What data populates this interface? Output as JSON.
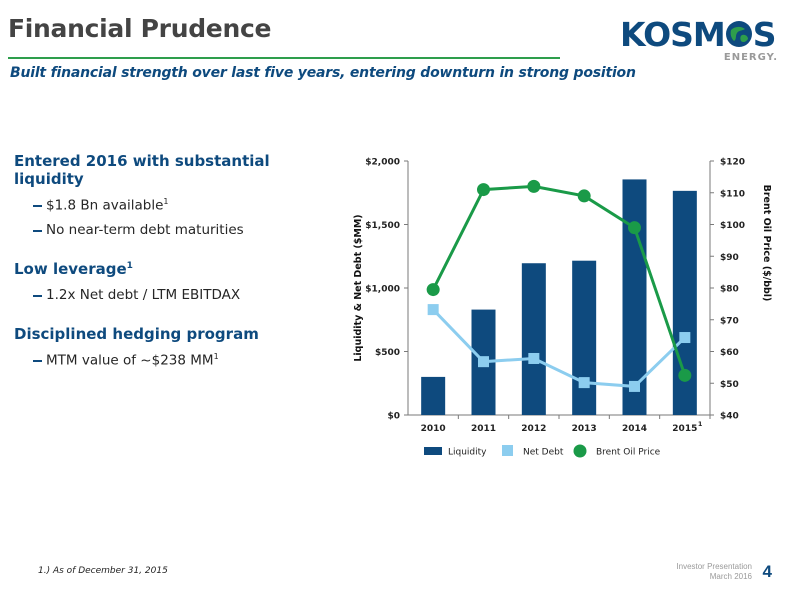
{
  "header": {
    "title": "Financial Prudence",
    "subtitle": "Built financial strength over last five years, entering downturn in strong position"
  },
  "logo": {
    "part1": "KOSM",
    "part2": "S",
    "energy": "ENERGY."
  },
  "sections": [
    {
      "heading": "Entered 2016 with substantial liquidity",
      "heading_sup": "",
      "items": [
        {
          "text": "$1.8 Bn available",
          "sup": "1"
        },
        {
          "text": "No near-term debt maturities",
          "sup": ""
        }
      ]
    },
    {
      "heading": "Low leverage",
      "heading_sup": "1",
      "items": [
        {
          "text": "1.2x Net debt / LTM EBITDAX",
          "sup": ""
        }
      ]
    },
    {
      "heading": "Disciplined hedging program",
      "heading_sup": "",
      "items": [
        {
          "text": "MTM value of ~$238 MM",
          "sup": "1"
        }
      ]
    }
  ],
  "chart_data": {
    "type": "bar",
    "categories": [
      "2010",
      "2011",
      "2012",
      "2013",
      "2014",
      "2015"
    ],
    "category_superscripts": [
      "",
      "",
      "",
      "",
      "",
      "1"
    ],
    "series": [
      {
        "name": "Liquidity",
        "kind": "bar",
        "axis": "left",
        "color": "#0e4a7e",
        "values": [
          300,
          830,
          1195,
          1215,
          1855,
          1765
        ]
      },
      {
        "name": "Net Debt",
        "kind": "line",
        "axis": "left",
        "color": "#8ccdef",
        "values": [
          830,
          420,
          445,
          255,
          225,
          610
        ]
      },
      {
        "name": "Brent Oil Price",
        "kind": "line",
        "axis": "right",
        "color": "#1a9a48",
        "values": [
          79.5,
          111,
          112,
          109,
          99,
          52.5
        ]
      }
    ],
    "ylabel": "Liquidity & Net Debt ($MM)",
    "ylim": [
      0,
      2000
    ],
    "yticks": [
      "$0",
      "$500",
      "$1,000",
      "$1,500",
      "$2,000"
    ],
    "y2label": "Brent Oil Price ($/bbl)",
    "y2lim": [
      40,
      120
    ],
    "y2ticks": [
      "$40",
      "$50",
      "$60",
      "$70",
      "$80",
      "$90",
      "$100",
      "$110",
      "$120"
    ],
    "legend_position": "bottom",
    "grid": false
  },
  "footer": {
    "footnote": "1.) As of  December 31, 2015",
    "line1": "Investor Presentation",
    "line2": "March 2016",
    "page": "4"
  }
}
